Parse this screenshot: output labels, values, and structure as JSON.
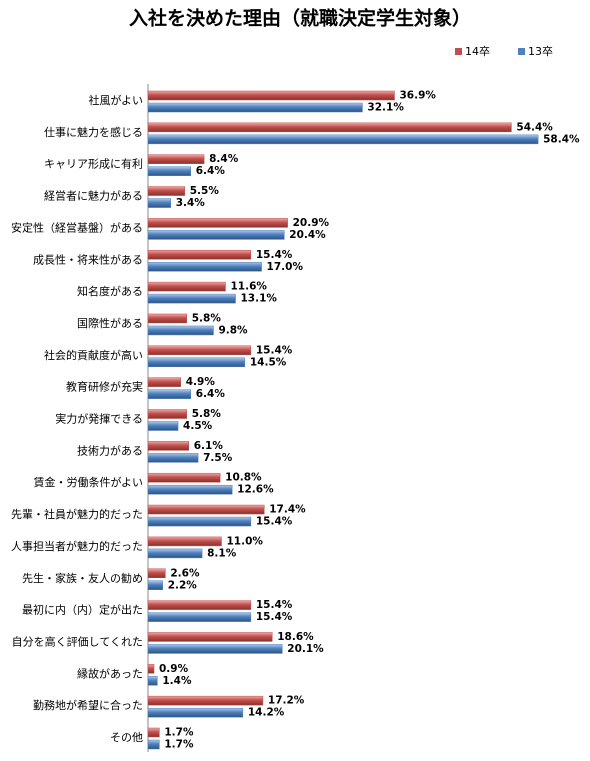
{
  "chart_data": {
    "type": "bar",
    "orientation": "horizontal",
    "title": "入社を決めた理由（就職決定学生対象）",
    "categories": [
      "社風がよい",
      "仕事に魅力を感じる",
      "キャリア形成に有利",
      "経営者に魅力がある",
      "安定性（経営基盤）がある",
      "成長性・将来性がある",
      "知名度がある",
      "国際性がある",
      "社会的貢献度が高い",
      "教育研修が充実",
      "実力が発揮できる",
      "技術力がある",
      "賃金・労働条件がよい",
      "先輩・社員が魅力的だった",
      "人事担当者が魅力的だった",
      "先生・家族・友人の勧め",
      "最初に内（内）定が出た",
      "自分を高く評価してくれた",
      "縁故があった",
      "勤務地が希望に合った",
      "その他"
    ],
    "series": [
      {
        "name": "14卒",
        "color": "#c0504d",
        "values": [
          36.9,
          54.4,
          8.4,
          5.5,
          20.9,
          15.4,
          11.6,
          5.8,
          15.4,
          4.9,
          5.8,
          6.1,
          10.8,
          17.4,
          11.0,
          2.6,
          15.4,
          18.6,
          0.9,
          17.2,
          1.7
        ],
        "value_labels": [
          "36.9%",
          "54.4%",
          "8.4%",
          "5.5%",
          "20.9%",
          "15.4%",
          "11.6%",
          "5.8%",
          "15.4%",
          "4.9%",
          "5.8%",
          "6.1%",
          "10.8%",
          "17.4%",
          "11.0%",
          "2.6%",
          "15.4%",
          "18.6%",
          "0.9%",
          "17.2%",
          "1.7%"
        ]
      },
      {
        "name": "13卒",
        "color": "#4f81bd",
        "values": [
          32.1,
          58.4,
          6.4,
          3.4,
          20.4,
          17.0,
          13.1,
          9.8,
          14.5,
          6.4,
          4.5,
          7.5,
          12.6,
          15.4,
          8.1,
          2.2,
          15.4,
          20.1,
          1.4,
          14.2,
          1.7
        ],
        "value_labels": [
          "32.1%",
          "58.4%",
          "6.4%",
          "3.4%",
          "20.4%",
          "17.0%",
          "13.1%",
          "9.8%",
          "14.5%",
          "6.4%",
          "4.5%",
          "7.5%",
          "12.6%",
          "15.4%",
          "8.1%",
          "2.2%",
          "15.4%",
          "20.1%",
          "1.4%",
          "14.2%",
          "1.7%"
        ]
      }
    ],
    "legend": "top-right"
  }
}
